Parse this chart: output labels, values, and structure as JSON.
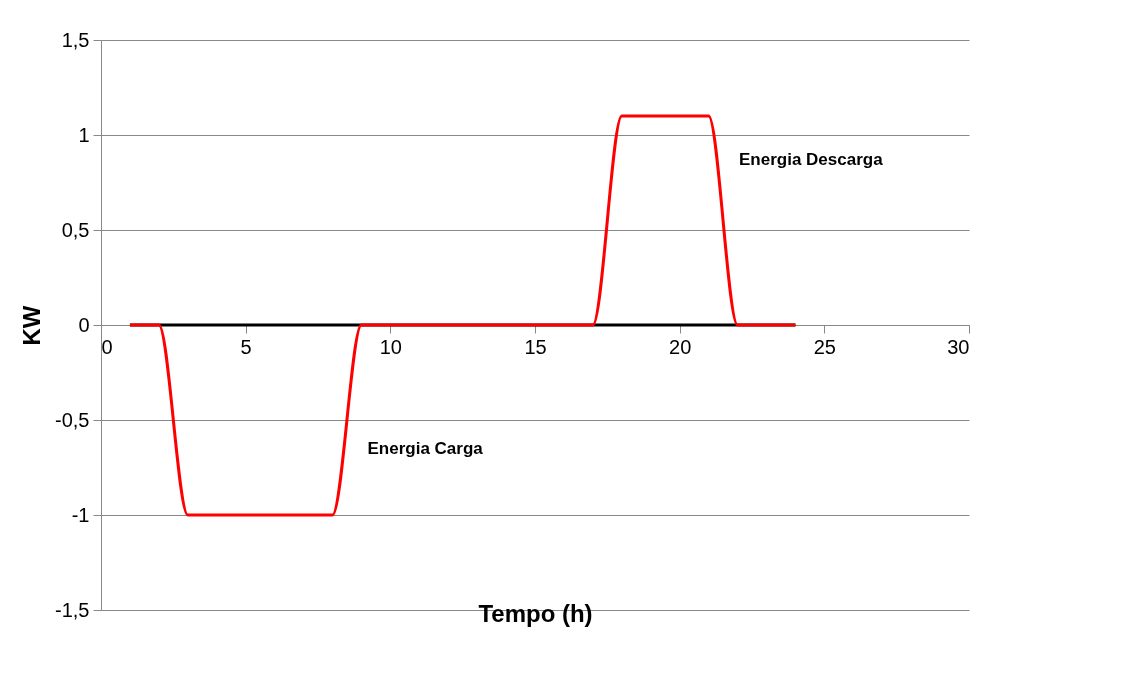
{
  "chart_data": {
    "type": "line",
    "xlabel": "Tempo (h)",
    "ylabel": "KW",
    "x": [
      1,
      2,
      3,
      4,
      5,
      6,
      7,
      8,
      9,
      10,
      11,
      12,
      13,
      14,
      15,
      16,
      17,
      18,
      19,
      20,
      21,
      22,
      23,
      24
    ],
    "series": [
      {
        "color": "#000000",
        "values": [
          0,
          0,
          0,
          0,
          0,
          0,
          0,
          0,
          0,
          0,
          0,
          0,
          0,
          0,
          0,
          0,
          0,
          0,
          0,
          0,
          0,
          0,
          0,
          0
        ]
      },
      {
        "color": "#ff0000",
        "values": [
          0,
          0,
          -1,
          -1,
          -1,
          -1,
          -1,
          -1,
          0,
          0,
          0,
          0,
          0,
          0,
          0,
          0,
          0,
          1.1,
          1.1,
          1.1,
          1.1,
          0,
          0,
          0
        ]
      }
    ],
    "xlim": [
      0,
      30
    ],
    "xticks": [
      0,
      5,
      10,
      15,
      20,
      25,
      30
    ],
    "ylim": [
      -1.5,
      1.5
    ],
    "yticks": [
      {
        "value": -1.5,
        "label": "-1,5"
      },
      -1,
      {
        "value": -0.5,
        "label": "-0,5"
      },
      0,
      {
        "value": 0.5,
        "label": "0,5"
      },
      1,
      {
        "value": 1.5,
        "label": "1,5"
      }
    ],
    "grid": "y",
    "marker": "none",
    "line_style": "solid",
    "annotations": [
      "Energia  Carga",
      "Energia  Descarga"
    ]
  }
}
